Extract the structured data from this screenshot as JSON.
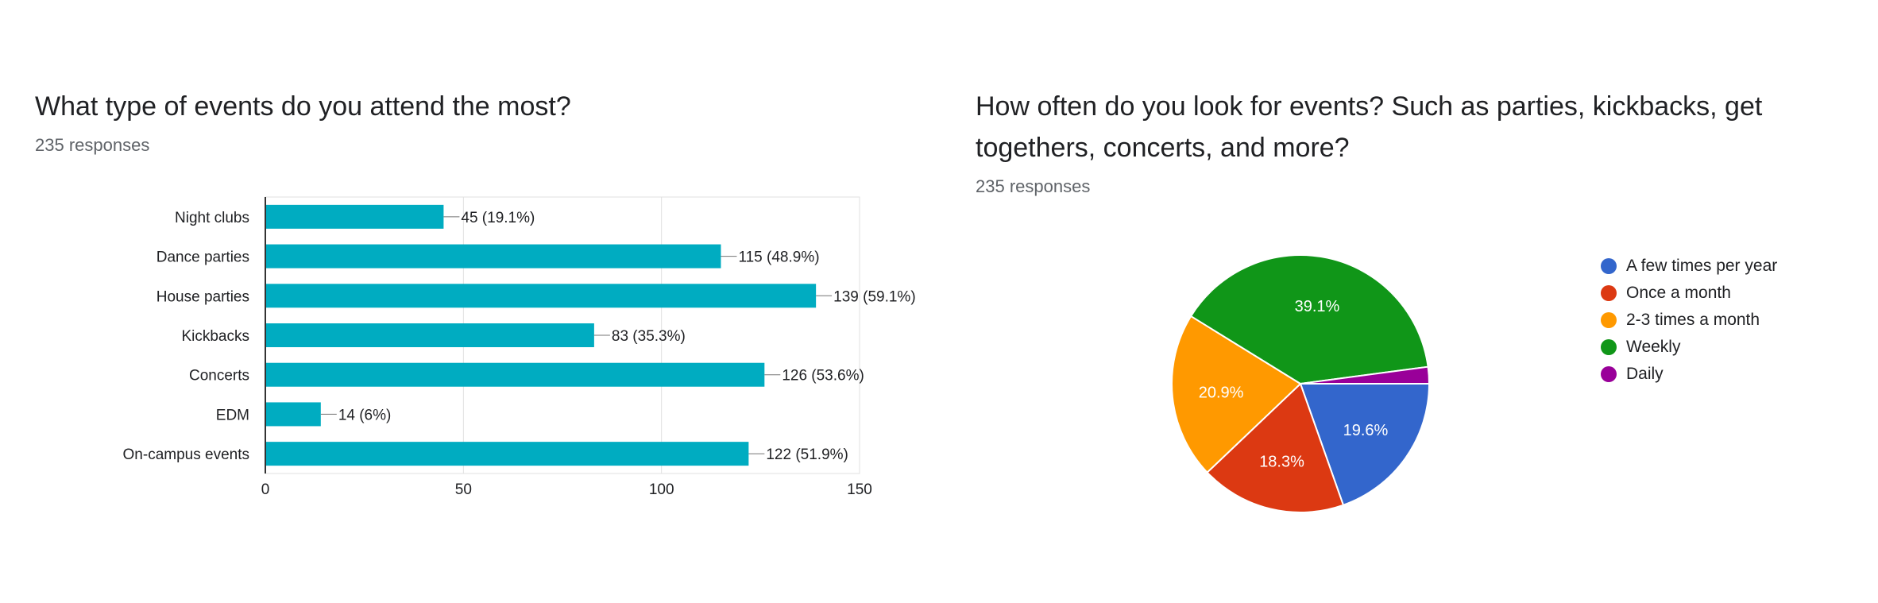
{
  "left": {
    "title": "What type of events do you attend the most?",
    "responses": "235 responses"
  },
  "right": {
    "title": "How often do you look for events? Such as parties, kickbacks, get togethers, concerts, and more?",
    "responses": "235 responses"
  },
  "chart_data": [
    {
      "type": "bar",
      "orientation": "horizontal",
      "title": "What type of events do you attend the most?",
      "categories": [
        "Night clubs",
        "Dance parties",
        "House parties",
        "Kickbacks",
        "Concerts",
        "EDM",
        "On-campus events"
      ],
      "values": [
        45,
        115,
        139,
        83,
        126,
        14,
        122
      ],
      "data_labels": [
        "45 (19.1%)",
        "115 (48.9%)",
        "139 (59.1%)",
        "83 (35.3%)",
        "126 (53.6%)",
        "14 (6%)",
        "122 (51.9%)"
      ],
      "xlim": [
        0,
        150
      ],
      "xticks": [
        0,
        50,
        100,
        150
      ],
      "grid": true,
      "color": "#00acc1"
    },
    {
      "type": "pie",
      "title": "How often do you look for events? Such as parties, kickbacks, get togethers, concerts, and more?",
      "labels": [
        "A few times per year",
        "Once a month",
        "2-3 times a month",
        "Weekly",
        "Daily"
      ],
      "values": [
        19.6,
        18.3,
        20.9,
        39.1,
        2.1
      ],
      "slice_labels": [
        "19.6%",
        "18.3%",
        "20.9%",
        "39.1%",
        ""
      ],
      "colors": [
        "#3366cc",
        "#dc3912",
        "#ff9900",
        "#109618",
        "#990099"
      ],
      "legend": "right"
    }
  ]
}
